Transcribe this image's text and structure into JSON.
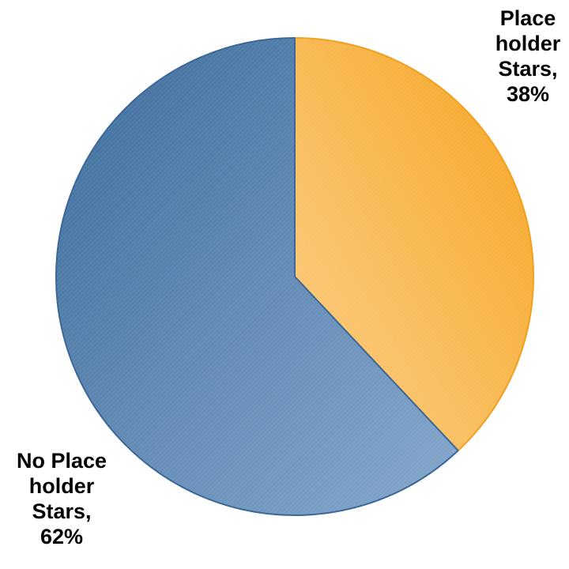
{
  "chart_data": {
    "type": "pie",
    "title": "",
    "slices": [
      {
        "name": "Place holder Stars",
        "value": 38,
        "label_lines": [
          "Place",
          "holder",
          "Stars,",
          "38%"
        ],
        "color": "#f5a31e",
        "color_light": "#fdd08a",
        "stroke": "#f0a01c"
      },
      {
        "name": "No Place holder Stars",
        "value": 62,
        "label_lines": [
          "No Place",
          "holder",
          "Stars,",
          "62%"
        ],
        "color": "#3c6c9c",
        "color_light": "#86a8cc",
        "stroke": "#3a6697"
      }
    ]
  }
}
